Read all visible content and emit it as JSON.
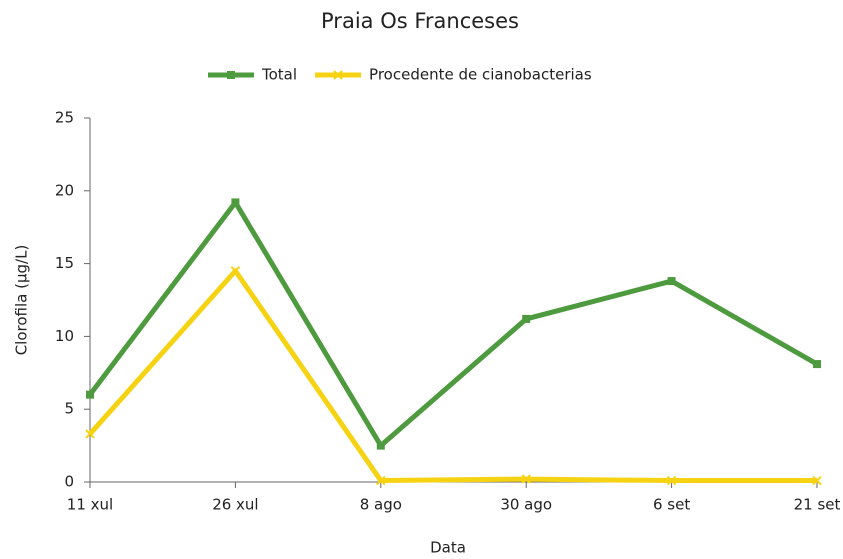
{
  "chart_data": {
    "type": "line",
    "title": "Praia Os Franceses",
    "xlabel": "Data",
    "ylabel": "Clorofila (µg/L)",
    "categories": [
      "11 xul",
      "26 xul",
      "8 ago",
      "30 ago",
      "6 set",
      "21 set"
    ],
    "series": [
      {
        "name": "Total",
        "color": "#4e9a3e",
        "marker": "square",
        "values": [
          6.0,
          19.2,
          2.5,
          11.2,
          13.8,
          8.1
        ]
      },
      {
        "name": "Procedente de cianobacterias",
        "color": "#f5d313",
        "marker": "x",
        "values": [
          3.3,
          14.5,
          0.1,
          0.2,
          0.1,
          0.1
        ]
      }
    ],
    "ylim": [
      0,
      25
    ],
    "yticks": [
      0,
      5,
      10,
      15,
      20,
      25
    ],
    "grid": false,
    "legend": "top"
  }
}
